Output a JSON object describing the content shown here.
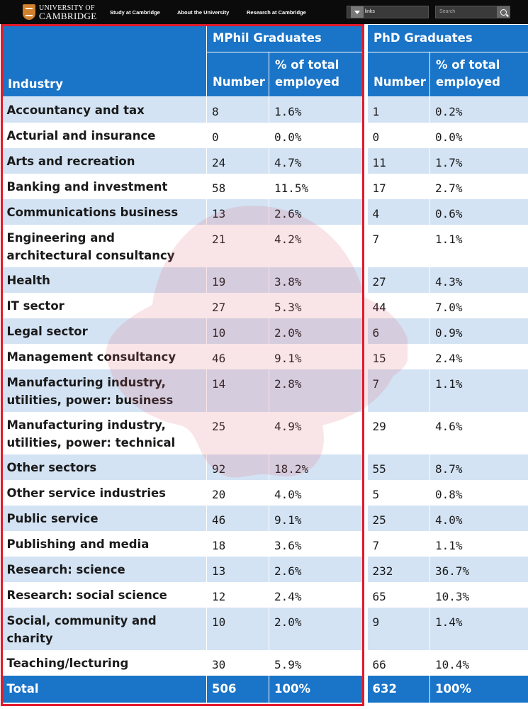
{
  "site": {
    "logo_line1": "UNIVERSITY OF",
    "logo_line2": "CAMBRIDGE",
    "nav": [
      "Study at Cambridge",
      "About the University",
      "Research at Cambridge"
    ],
    "quick_links": "Quick links",
    "search_placeholder": "Search"
  },
  "table": {
    "industry_header": "Industry",
    "mphil_header": "MPhil Graduates",
    "phd_header": "PhD Graduates",
    "number_header": "Number",
    "pct_header_line1": "% of total",
    "pct_header_line2": "employed",
    "rows": [
      {
        "industry": "Accountancy and tax",
        "mphil_n": "8",
        "mphil_p": "1.6%",
        "phd_n": "1",
        "phd_p": "0.2%"
      },
      {
        "industry": "Acturial and insurance",
        "mphil_n": "0",
        "mphil_p": "0.0%",
        "phd_n": "0",
        "phd_p": "0.0%"
      },
      {
        "industry": "Arts and recreation",
        "mphil_n": "24",
        "mphil_p": "4.7%",
        "phd_n": "11",
        "phd_p": "1.7%"
      },
      {
        "industry": "Banking and investment",
        "mphil_n": "58",
        "mphil_p": "11.5%",
        "phd_n": "17",
        "phd_p": "2.7%"
      },
      {
        "industry": "Communications business",
        "mphil_n": "13",
        "mphil_p": "2.6%",
        "phd_n": "4",
        "phd_p": "0.6%"
      },
      {
        "industry": "Engineering and architectural consultancy",
        "mphil_n": "21",
        "mphil_p": "4.2%",
        "phd_n": "7",
        "phd_p": "1.1%"
      },
      {
        "industry": "Health",
        "mphil_n": "19",
        "mphil_p": "3.8%",
        "phd_n": "27",
        "phd_p": "4.3%"
      },
      {
        "industry": "IT sector",
        "mphil_n": "27",
        "mphil_p": "5.3%",
        "phd_n": "44",
        "phd_p": "7.0%"
      },
      {
        "industry": "Legal sector",
        "mphil_n": "10",
        "mphil_p": "2.0%",
        "phd_n": "6",
        "phd_p": "0.9%"
      },
      {
        "industry": "Management consultancy",
        "mphil_n": "46",
        "mphil_p": "9.1%",
        "phd_n": "15",
        "phd_p": "2.4%"
      },
      {
        "industry": "Manufacturing industry, utilities, power: business",
        "mphil_n": "14",
        "mphil_p": "2.8%",
        "phd_n": "7",
        "phd_p": "1.1%"
      },
      {
        "industry": "Manufacturing industry, utilities, power: technical",
        "mphil_n": "25",
        "mphil_p": "4.9%",
        "phd_n": "29",
        "phd_p": "4.6%"
      },
      {
        "industry": "Other sectors",
        "mphil_n": "92",
        "mphil_p": "18.2%",
        "phd_n": "55",
        "phd_p": "8.7%"
      },
      {
        "industry": "Other service industries",
        "mphil_n": "20",
        "mphil_p": "4.0%",
        "phd_n": "5",
        "phd_p": "0.8%"
      },
      {
        "industry": "Public service",
        "mphil_n": "46",
        "mphil_p": "9.1%",
        "phd_n": "25",
        "phd_p": "4.0%"
      },
      {
        "industry": "Publishing and media",
        "mphil_n": "18",
        "mphil_p": "3.6%",
        "phd_n": "7",
        "phd_p": "1.1%"
      },
      {
        "industry": "Research: science",
        "mphil_n": "13",
        "mphil_p": "2.6%",
        "phd_n": "232",
        "phd_p": "36.7%"
      },
      {
        "industry": "Research: social science",
        "mphil_n": "12",
        "mphil_p": "2.4%",
        "phd_n": "65",
        "phd_p": "10.3%"
      },
      {
        "industry": "Social, community and charity",
        "mphil_n": "10",
        "mphil_p": "2.0%",
        "phd_n": "9",
        "phd_p": "1.4%"
      },
      {
        "industry": "Teaching/lecturing",
        "mphil_n": "30",
        "mphil_p": "5.9%",
        "phd_n": "66",
        "phd_p": "10.4%"
      }
    ],
    "total": {
      "label": "Total",
      "mphil_n": "506",
      "mphil_p": "100%",
      "phd_n": "632",
      "phd_p": "100%"
    }
  },
  "colors": {
    "header_blue": "#1a74c8",
    "row_stripe": "#d3e3f4",
    "highlight_red": "#e21a2c"
  }
}
